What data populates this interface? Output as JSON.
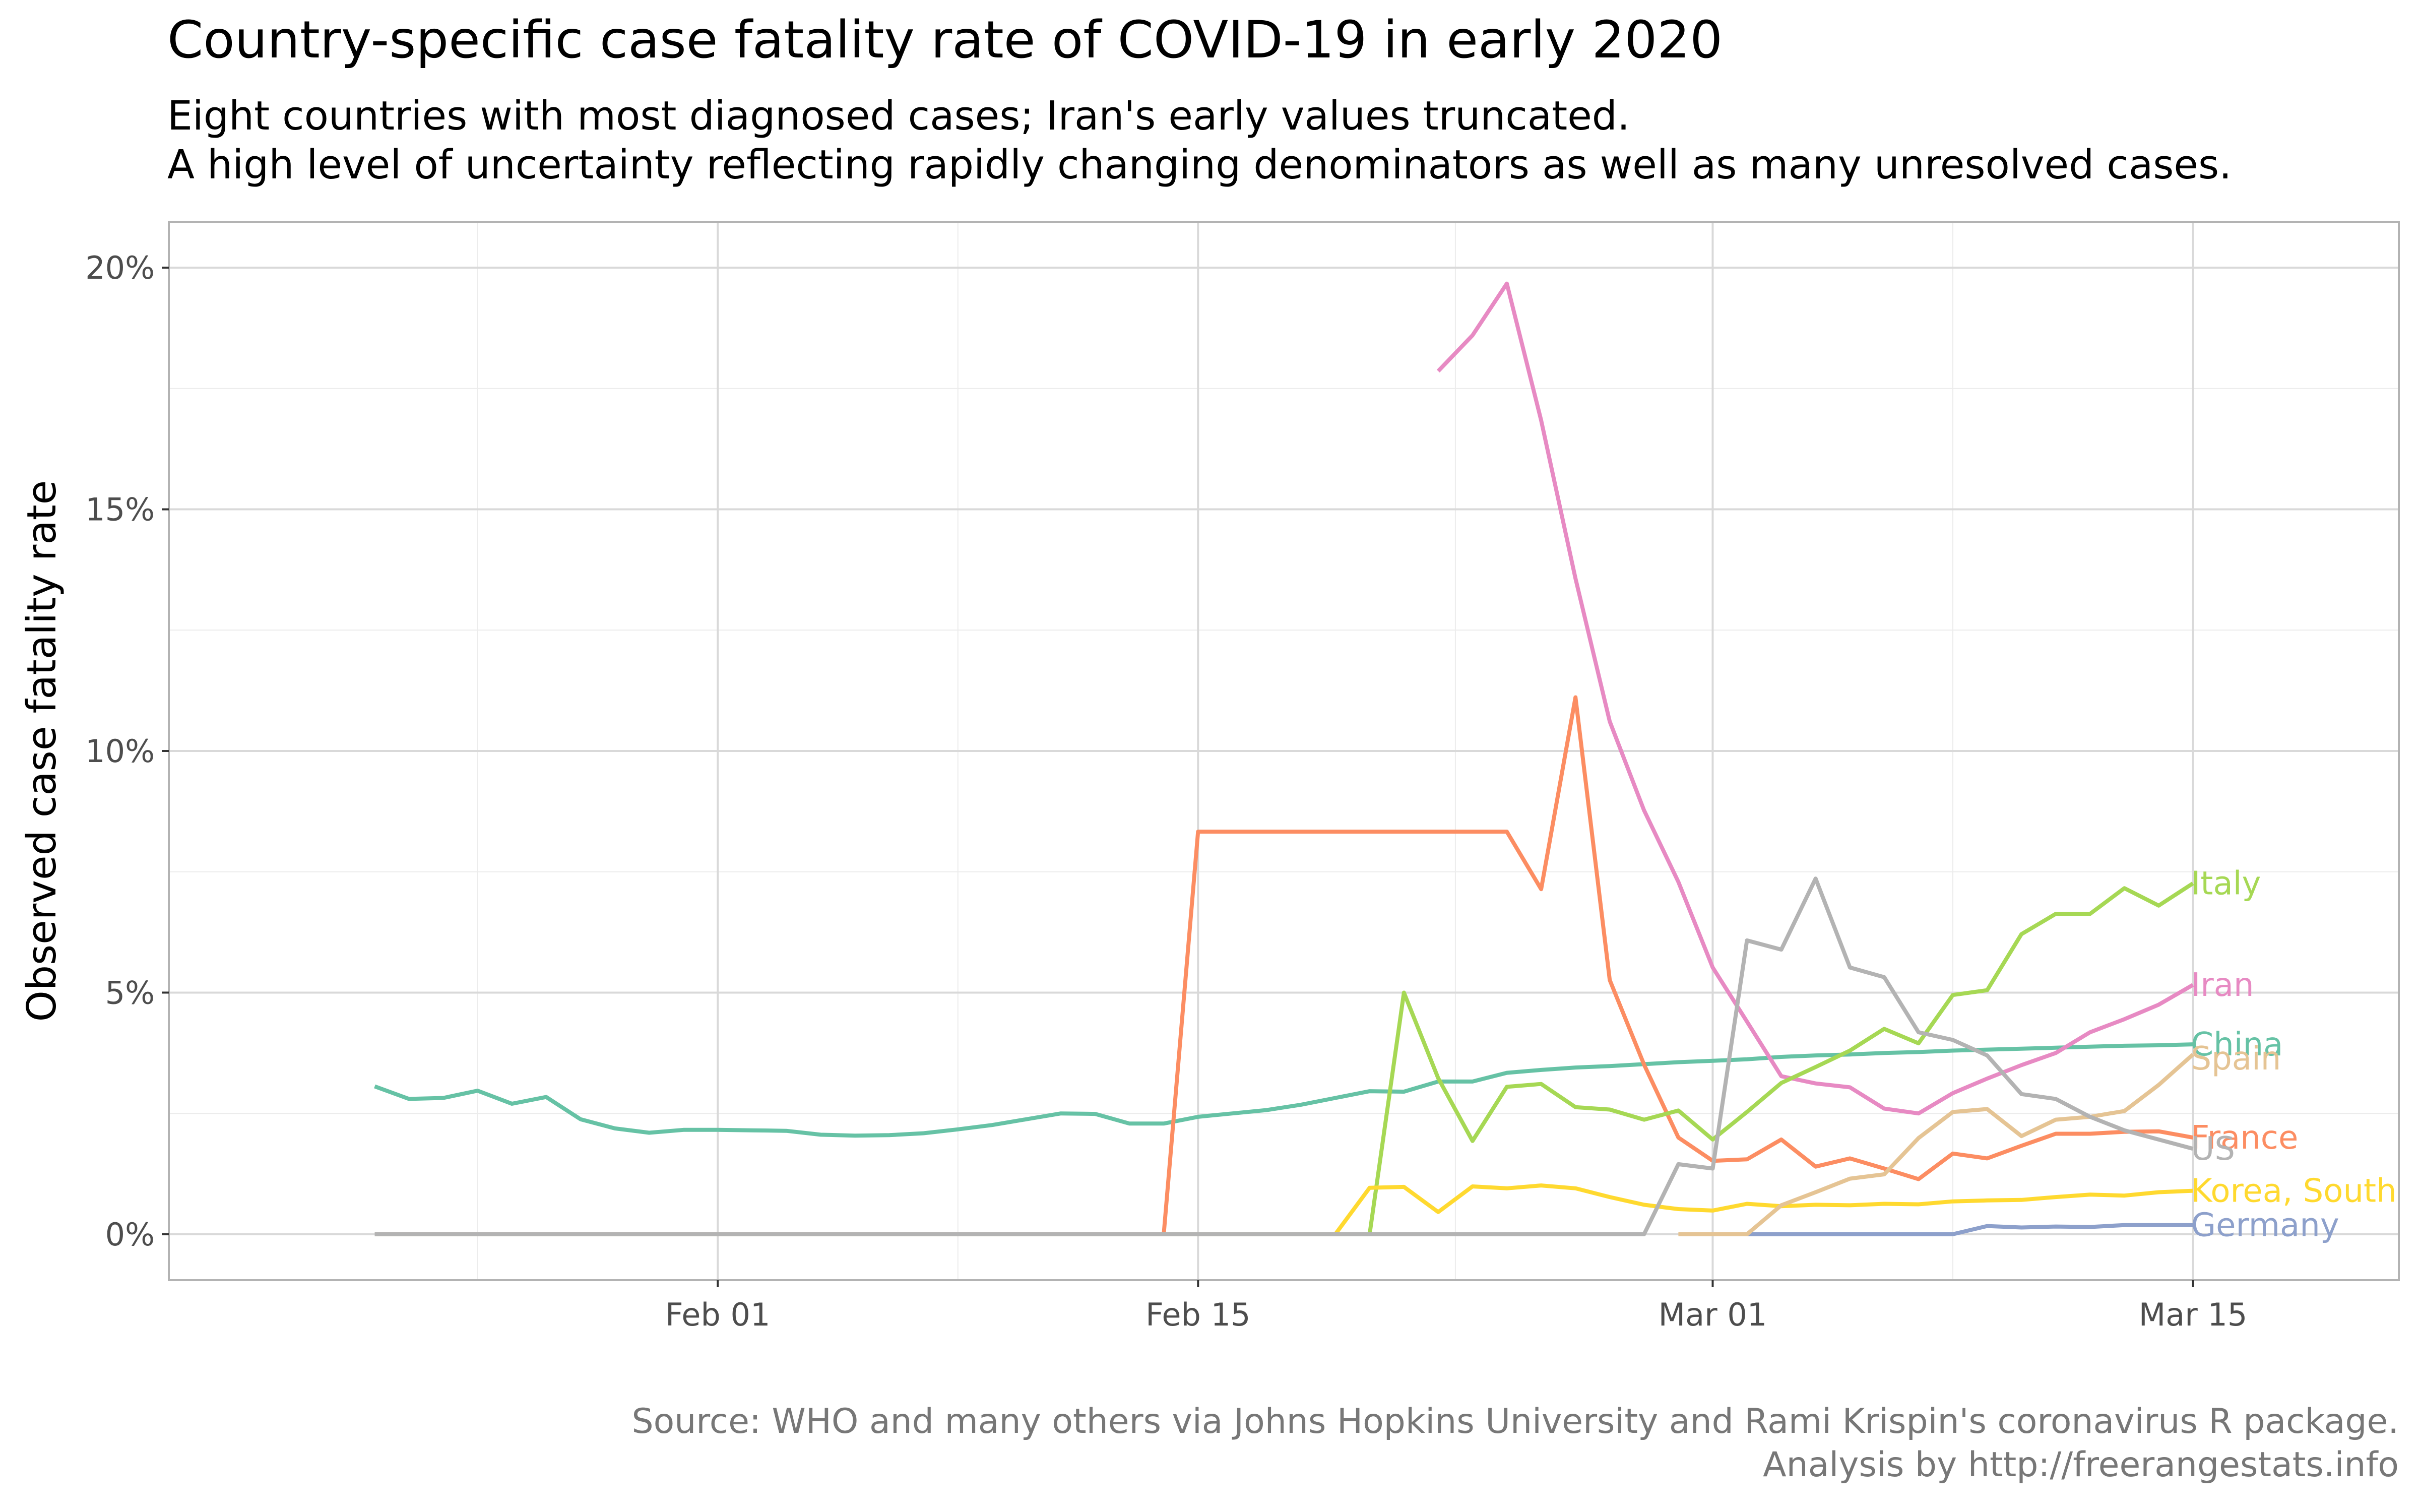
{
  "chart_data": {
    "type": "line",
    "title": "Country-specific case fatality rate of COVID-19 in early 2020",
    "subtitle": [
      "Eight countries with most diagnosed cases; Iran's early values truncated.",
      "A high level of uncertainty reflecting rapidly changing denominators as well as many unresolved cases."
    ],
    "caption": [
      "Source: WHO and many others via Johns Hopkins University and Rami Krispin's coronavirus R package.",
      "Analysis by http://freerangestats.info"
    ],
    "xlabel": "",
    "ylabel": "Observed case fatality rate",
    "x_type": "date",
    "xlim": [
      "2020-01-16",
      "2020-03-21"
    ],
    "ylim": [
      -0.0095,
      0.2095
    ],
    "x_ticks": [
      {
        "date": "2020-02-01",
        "label": "Feb 01"
      },
      {
        "date": "2020-02-15",
        "label": "Feb 15"
      },
      {
        "date": "2020-03-01",
        "label": "Mar 01"
      },
      {
        "date": "2020-03-15",
        "label": "Mar 15"
      }
    ],
    "y_ticks": [
      {
        "value": 0,
        "label": "0%"
      },
      {
        "value": 0.05,
        "label": "5%"
      },
      {
        "value": 0.1,
        "label": "10%"
      },
      {
        "value": 0.15,
        "label": "15%"
      },
      {
        "value": 0.2,
        "label": "20%"
      }
    ],
    "grid": true,
    "legend": "direct labels at line ends",
    "series": [
      {
        "name": "China",
        "color": "#66c2a5",
        "x": [
          "2020-01-22",
          "2020-01-23",
          "2020-01-24",
          "2020-01-25",
          "2020-01-26",
          "2020-01-27",
          "2020-01-28",
          "2020-01-29",
          "2020-01-30",
          "2020-01-31",
          "2020-02-01",
          "2020-02-02",
          "2020-02-03",
          "2020-02-04",
          "2020-02-05",
          "2020-02-06",
          "2020-02-07",
          "2020-02-08",
          "2020-02-09",
          "2020-02-10",
          "2020-02-11",
          "2020-02-12",
          "2020-02-13",
          "2020-02-14",
          "2020-02-15",
          "2020-02-16",
          "2020-02-17",
          "2020-02-18",
          "2020-02-19",
          "2020-02-20",
          "2020-02-21",
          "2020-02-22",
          "2020-02-23",
          "2020-02-24",
          "2020-02-25",
          "2020-02-26",
          "2020-02-27",
          "2020-02-28",
          "2020-02-29",
          "2020-03-01",
          "2020-03-02",
          "2020-03-03",
          "2020-03-04",
          "2020-03-05",
          "2020-03-06",
          "2020-03-07",
          "2020-03-08",
          "2020-03-09",
          "2020-03-10",
          "2020-03-11",
          "2020-03-12",
          "2020-03-13",
          "2020-03-14",
          "2020-03-15"
        ],
        "y": [
          0.0306,
          0.028,
          0.0282,
          0.0297,
          0.027,
          0.0284,
          0.0238,
          0.0219,
          0.021,
          0.0216,
          0.0216,
          0.0215,
          0.0214,
          0.0206,
          0.0204,
          0.0205,
          0.0209,
          0.0217,
          0.0226,
          0.0238,
          0.025,
          0.0249,
          0.0229,
          0.0229,
          0.0243,
          0.025,
          0.0257,
          0.0268,
          0.0282,
          0.0296,
          0.0295,
          0.0316,
          0.0316,
          0.0334,
          0.034,
          0.0345,
          0.0348,
          0.0352,
          0.0356,
          0.0359,
          0.0362,
          0.0367,
          0.037,
          0.0372,
          0.0375,
          0.0377,
          0.038,
          0.0382,
          0.0384,
          0.0386,
          0.0388,
          0.039,
          0.0391,
          0.0393
        ]
      },
      {
        "name": "France",
        "color": "#fc8d62",
        "x": [
          "2020-01-22",
          "2020-02-14",
          "2020-02-15",
          "2020-02-16",
          "2020-02-17",
          "2020-02-18",
          "2020-02-19",
          "2020-02-20",
          "2020-02-21",
          "2020-02-22",
          "2020-02-23",
          "2020-02-24",
          "2020-02-25",
          "2020-02-26",
          "2020-02-27",
          "2020-02-28",
          "2020-02-29",
          "2020-03-01",
          "2020-03-02",
          "2020-03-03",
          "2020-03-04",
          "2020-03-05",
          "2020-03-06",
          "2020-03-07",
          "2020-03-08",
          "2020-03-09",
          "2020-03-10",
          "2020-03-11",
          "2020-03-12",
          "2020-03-13",
          "2020-03-14",
          "2020-03-15"
        ],
        "y": [
          0,
          0,
          0.0833,
          0.0833,
          0.0833,
          0.0833,
          0.0833,
          0.0833,
          0.0833,
          0.0833,
          0.0833,
          0.0833,
          0.0714,
          0.1111,
          0.0526,
          0.0351,
          0.02,
          0.0152,
          0.0155,
          0.0196,
          0.014,
          0.0157,
          0.0136,
          0.0114,
          0.0167,
          0.0157,
          0.0183,
          0.0208,
          0.0208,
          0.0212,
          0.0213,
          0.02
        ]
      },
      {
        "name": "Germany",
        "color": "#8da0cb",
        "x": [
          "2020-03-02",
          "2020-03-03",
          "2020-03-04",
          "2020-03-05",
          "2020-03-06",
          "2020-03-07",
          "2020-03-08",
          "2020-03-09",
          "2020-03-10",
          "2020-03-11",
          "2020-03-12",
          "2020-03-13",
          "2020-03-14",
          "2020-03-15"
        ],
        "y": [
          0,
          0,
          0,
          0,
          0,
          0,
          0,
          0.0017,
          0.0014,
          0.0016,
          0.0015,
          0.0019,
          0.0019,
          0.0019
        ]
      },
      {
        "name": "Iran",
        "color": "#e78ac3",
        "x": [
          "2020-02-22",
          "2020-02-23",
          "2020-02-24",
          "2020-02-25",
          "2020-02-26",
          "2020-02-27",
          "2020-02-28",
          "2020-02-29",
          "2020-03-01",
          "2020-03-02",
          "2020-03-03",
          "2020-03-04",
          "2020-03-05",
          "2020-03-06",
          "2020-03-07",
          "2020-03-08",
          "2020-03-09",
          "2020-03-10",
          "2020-03-11",
          "2020-03-12",
          "2020-03-13",
          "2020-03-14",
          "2020-03-15"
        ],
        "y": [
          0.1786,
          0.186,
          0.1967,
          0.1684,
          0.1357,
          0.1061,
          0.0877,
          0.0729,
          0.0552,
          0.044,
          0.0327,
          0.0312,
          0.0304,
          0.026,
          0.025,
          0.0292,
          0.0322,
          0.035,
          0.0375,
          0.0418,
          0.0445,
          0.0475,
          0.0516
        ]
      },
      {
        "name": "Italy",
        "color": "#a6d854",
        "x": [
          "2020-01-22",
          "2020-02-20",
          "2020-02-21",
          "2020-02-22",
          "2020-02-23",
          "2020-02-24",
          "2020-02-25",
          "2020-02-26",
          "2020-02-27",
          "2020-02-28",
          "2020-02-29",
          "2020-03-01",
          "2020-03-02",
          "2020-03-03",
          "2020-03-04",
          "2020-03-05",
          "2020-03-06",
          "2020-03-07",
          "2020-03-08",
          "2020-03-09",
          "2020-03-10",
          "2020-03-11",
          "2020-03-12",
          "2020-03-13",
          "2020-03-14",
          "2020-03-15"
        ],
        "y": [
          0,
          0,
          0.05,
          0.0323,
          0.0193,
          0.0305,
          0.0311,
          0.0263,
          0.0258,
          0.0237,
          0.0256,
          0.0196,
          0.0253,
          0.0313,
          0.0346,
          0.038,
          0.0425,
          0.0395,
          0.0495,
          0.0505,
          0.0621,
          0.0663,
          0.0663,
          0.0716,
          0.068,
          0.0726
        ]
      },
      {
        "name": "Korea, South",
        "color": "#ffd92f",
        "x": [
          "2020-01-22",
          "2020-02-19",
          "2020-02-20",
          "2020-02-21",
          "2020-02-22",
          "2020-02-23",
          "2020-02-24",
          "2020-02-25",
          "2020-02-26",
          "2020-02-27",
          "2020-02-28",
          "2020-02-29",
          "2020-03-01",
          "2020-03-02",
          "2020-03-03",
          "2020-03-04",
          "2020-03-05",
          "2020-03-06",
          "2020-03-07",
          "2020-03-08",
          "2020-03-09",
          "2020-03-10",
          "2020-03-11",
          "2020-03-12",
          "2020-03-13",
          "2020-03-14",
          "2020-03-15"
        ],
        "y": [
          0,
          0,
          0.0096,
          0.0098,
          0.0046,
          0.0099,
          0.0095,
          0.0101,
          0.0095,
          0.0077,
          0.0061,
          0.0052,
          0.0049,
          0.0063,
          0.0058,
          0.0061,
          0.006,
          0.0063,
          0.0062,
          0.0068,
          0.007,
          0.0071,
          0.0077,
          0.0082,
          0.008,
          0.0087,
          0.009
        ]
      },
      {
        "name": "Spain",
        "color": "#e5c494",
        "x": [
          "2020-02-29",
          "2020-03-01",
          "2020-03-02",
          "2020-03-03",
          "2020-03-04",
          "2020-03-05",
          "2020-03-06",
          "2020-03-07",
          "2020-03-08",
          "2020-03-09",
          "2020-03-10",
          "2020-03-11",
          "2020-03-12",
          "2020-03-13",
          "2020-03-14",
          "2020-03-15"
        ],
        "y": [
          0,
          0,
          0,
          0.006,
          0.0087,
          0.0115,
          0.0124,
          0.0199,
          0.0253,
          0.0259,
          0.0203,
          0.0237,
          0.0243,
          0.0255,
          0.0309,
          0.0372
        ]
      },
      {
        "name": "US",
        "color": "#b3b3b3",
        "x": [
          "2020-01-22",
          "2020-02-28",
          "2020-02-29",
          "2020-03-01",
          "2020-03-02",
          "2020-03-03",
          "2020-03-04",
          "2020-03-05",
          "2020-03-06",
          "2020-03-07",
          "2020-03-08",
          "2020-03-09",
          "2020-03-10",
          "2020-03-11",
          "2020-03-12",
          "2020-03-13",
          "2020-03-14",
          "2020-03-15"
        ],
        "y": [
          0,
          0,
          0.0145,
          0.0136,
          0.0608,
          0.0589,
          0.0736,
          0.0552,
          0.0532,
          0.0418,
          0.0402,
          0.037,
          0.029,
          0.028,
          0.0243,
          0.0215,
          0.0196,
          0.0177
        ]
      }
    ],
    "end_labels": [
      {
        "series": "Italy",
        "text": "Italy",
        "y": 0.0726
      },
      {
        "series": "Iran",
        "text": "Iran",
        "y": 0.0516
      },
      {
        "series": "China",
        "text": "China",
        "y": 0.0393
      },
      {
        "series": "Spain",
        "text": "Spain",
        "y": 0.0364
      },
      {
        "series": "France",
        "text": "France",
        "y": 0.02
      },
      {
        "series": "US",
        "text": "US",
        "y": 0.0177
      },
      {
        "series": "Korea, South",
        "text": "Korea, South",
        "y": 0.009
      },
      {
        "series": "Germany",
        "text": "Germany",
        "y": 0.0019
      }
    ]
  }
}
